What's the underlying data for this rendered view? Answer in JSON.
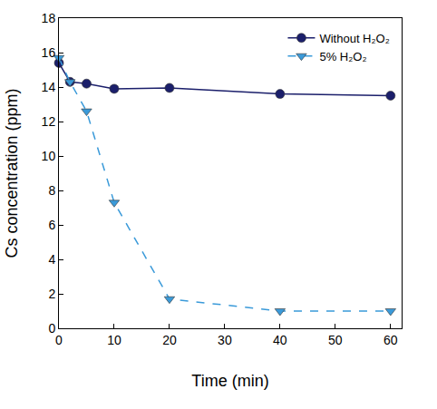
{
  "chart_data": {
    "type": "line",
    "x_label": "Time (min)",
    "y_label": "Cs concentration (ppm)",
    "xlim": [
      0,
      62
    ],
    "xticks": [
      0,
      10,
      20,
      30,
      40,
      50,
      60
    ],
    "ylim": [
      0,
      18
    ],
    "yticks": [
      0,
      2,
      4,
      6,
      8,
      10,
      12,
      14,
      16,
      18
    ],
    "grid": false,
    "legend": "upper right",
    "series": [
      {
        "name": "Without H₂O₂",
        "color": "#1b1f6b",
        "marker": "circle",
        "line_style": "solid",
        "x": [
          0,
          2,
          5,
          10,
          20,
          40,
          60
        ],
        "values": [
          15.4,
          14.3,
          14.2,
          13.9,
          13.95,
          13.6,
          13.5
        ]
      },
      {
        "name": "5% H₂O₂",
        "color": "#3a9ad9",
        "marker": "triangle-down",
        "line_style": "dash",
        "x": [
          0,
          2,
          5,
          10,
          20,
          40,
          60
        ],
        "values": [
          15.7,
          14.3,
          12.6,
          7.3,
          1.7,
          1.0,
          1.0
        ]
      }
    ]
  }
}
